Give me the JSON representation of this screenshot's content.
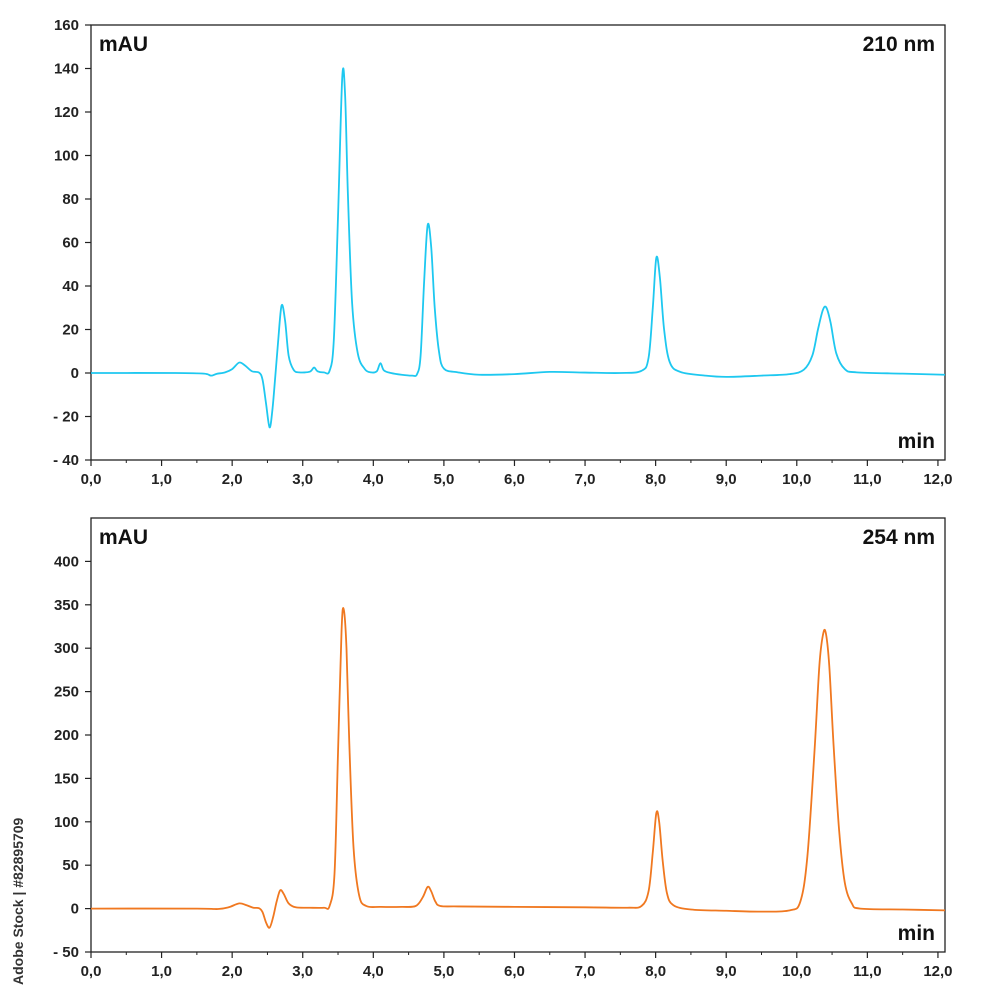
{
  "chart_data": [
    {
      "type": "line",
      "wavelength_label": "210 nm",
      "ylabel": "mAU",
      "xlabel": "min",
      "xlim": [
        0,
        12.1
      ],
      "ylim": [
        -40,
        160
      ],
      "x_ticks": [
        "0,0",
        "1,0",
        "2,0",
        "3,0",
        "4,0",
        "5,0",
        "6,0",
        "7,0",
        "8,0",
        "9,0",
        "10,0",
        "11,0",
        "12,0"
      ],
      "y_ticks": [
        "160",
        "140",
        "120",
        "100",
        "80",
        "60",
        "40",
        "20",
        "0",
        "- 20",
        "- 40"
      ],
      "y_tick_values": [
        160,
        140,
        120,
        100,
        80,
        60,
        40,
        20,
        0,
        -20,
        -40
      ],
      "color": "#1ec8f0",
      "series": [
        {
          "points": [
            [
              0.0,
              0
            ],
            [
              1.2,
              0
            ],
            [
              1.6,
              -0.3
            ],
            [
              1.7,
              -1.2
            ],
            [
              1.78,
              -0.4
            ],
            [
              1.9,
              0.3
            ],
            [
              2.0,
              1.8
            ],
            [
              2.1,
              4.8
            ],
            [
              2.18,
              3.5
            ],
            [
              2.28,
              0.8
            ],
            [
              2.38,
              0.2
            ],
            [
              2.43,
              -3
            ],
            [
              2.48,
              -14
            ],
            [
              2.53,
              -25
            ],
            [
              2.57,
              -17
            ],
            [
              2.61,
              -2
            ],
            [
              2.65,
              14
            ],
            [
              2.7,
              31
            ],
            [
              2.75,
              24
            ],
            [
              2.8,
              8
            ],
            [
              2.87,
              1.5
            ],
            [
              2.95,
              0.3
            ],
            [
              3.1,
              0.6
            ],
            [
              3.16,
              2.5
            ],
            [
              3.21,
              0.8
            ],
            [
              3.3,
              0.3
            ],
            [
              3.38,
              1
            ],
            [
              3.44,
              15
            ],
            [
              3.5,
              72
            ],
            [
              3.56,
              136
            ],
            [
              3.6,
              128
            ],
            [
              3.64,
              82
            ],
            [
              3.7,
              32
            ],
            [
              3.78,
              9
            ],
            [
              3.88,
              1.8
            ],
            [
              3.97,
              0.3
            ],
            [
              4.05,
              0.8
            ],
            [
              4.1,
              4.5
            ],
            [
              4.15,
              1.2
            ],
            [
              4.25,
              0
            ],
            [
              4.4,
              -0.8
            ],
            [
              4.55,
              -1.2
            ],
            [
              4.62,
              -0.5
            ],
            [
              4.67,
              8
            ],
            [
              4.72,
              42
            ],
            [
              4.77,
              68
            ],
            [
              4.82,
              58
            ],
            [
              4.87,
              30
            ],
            [
              4.93,
              10
            ],
            [
              5.0,
              2
            ],
            [
              5.2,
              0.3
            ],
            [
              5.5,
              -0.8
            ],
            [
              6.0,
              -0.5
            ],
            [
              6.5,
              0.5
            ],
            [
              7.0,
              0.2
            ],
            [
              7.5,
              0
            ],
            [
              7.8,
              1
            ],
            [
              7.9,
              7
            ],
            [
              7.96,
              30
            ],
            [
              8.01,
              53
            ],
            [
              8.06,
              44
            ],
            [
              8.12,
              20
            ],
            [
              8.2,
              5
            ],
            [
              8.35,
              0.5
            ],
            [
              8.7,
              -1.2
            ],
            [
              9.0,
              -1.8
            ],
            [
              9.5,
              -1.2
            ],
            [
              9.9,
              -0.5
            ],
            [
              10.1,
              1.5
            ],
            [
              10.22,
              8
            ],
            [
              10.3,
              20
            ],
            [
              10.37,
              29
            ],
            [
              10.42,
              30
            ],
            [
              10.48,
              23
            ],
            [
              10.56,
              9
            ],
            [
              10.68,
              1.8
            ],
            [
              10.85,
              0.3
            ],
            [
              11.5,
              -0.3
            ],
            [
              12.1,
              -0.8
            ]
          ]
        }
      ]
    },
    {
      "type": "line",
      "wavelength_label": "254 nm",
      "ylabel": "mAU",
      "xlabel": "min",
      "xlim": [
        0,
        12.1
      ],
      "ylim": [
        -50,
        450
      ],
      "x_ticks": [
        "0,0",
        "1,0",
        "2,0",
        "3,0",
        "4,0",
        "5,0",
        "6,0",
        "7,0",
        "8,0",
        "9,0",
        "10,0",
        "11,0",
        "12,0"
      ],
      "y_ticks": [
        "400",
        "350",
        "300",
        "250",
        "200",
        "150",
        "100",
        "50",
        "0",
        "- 50"
      ],
      "y_tick_values": [
        400,
        350,
        300,
        250,
        200,
        150,
        100,
        50,
        0,
        -50
      ],
      "color": "#f07820",
      "series": [
        {
          "points": [
            [
              0.0,
              0
            ],
            [
              1.5,
              0
            ],
            [
              1.8,
              -0.5
            ],
            [
              1.95,
              1.5
            ],
            [
              2.1,
              6
            ],
            [
              2.2,
              4
            ],
            [
              2.3,
              1
            ],
            [
              2.38,
              0.5
            ],
            [
              2.43,
              -4
            ],
            [
              2.48,
              -16
            ],
            [
              2.53,
              -22
            ],
            [
              2.58,
              -10
            ],
            [
              2.63,
              8
            ],
            [
              2.68,
              21
            ],
            [
              2.73,
              17
            ],
            [
              2.8,
              6
            ],
            [
              2.9,
              1.5
            ],
            [
              3.1,
              1
            ],
            [
              3.3,
              1
            ],
            [
              3.38,
              3
            ],
            [
              3.45,
              40
            ],
            [
              3.5,
              180
            ],
            [
              3.55,
              320
            ],
            [
              3.58,
              345
            ],
            [
              3.62,
              300
            ],
            [
              3.66,
              190
            ],
            [
              3.72,
              70
            ],
            [
              3.8,
              15
            ],
            [
              3.9,
              3
            ],
            [
              4.1,
              2
            ],
            [
              4.4,
              2
            ],
            [
              4.6,
              3
            ],
            [
              4.7,
              13
            ],
            [
              4.77,
              25
            ],
            [
              4.82,
              20
            ],
            [
              4.88,
              8
            ],
            [
              4.95,
              3
            ],
            [
              5.2,
              2.5
            ],
            [
              6.0,
              2
            ],
            [
              7.0,
              1.5
            ],
            [
              7.6,
              1
            ],
            [
              7.8,
              3
            ],
            [
              7.9,
              20
            ],
            [
              7.96,
              65
            ],
            [
              8.01,
              110
            ],
            [
              8.05,
              100
            ],
            [
              8.1,
              55
            ],
            [
              8.16,
              18
            ],
            [
              8.25,
              4
            ],
            [
              8.5,
              -1
            ],
            [
              9.0,
              -2.5
            ],
            [
              9.5,
              -3.5
            ],
            [
              9.9,
              -2
            ],
            [
              10.05,
              8
            ],
            [
              10.15,
              60
            ],
            [
              10.25,
              180
            ],
            [
              10.32,
              280
            ],
            [
              10.37,
              315
            ],
            [
              10.41,
              318
            ],
            [
              10.46,
              280
            ],
            [
              10.52,
              190
            ],
            [
              10.6,
              90
            ],
            [
              10.68,
              30
            ],
            [
              10.78,
              6
            ],
            [
              10.9,
              0
            ],
            [
              11.5,
              -1
            ],
            [
              12.1,
              -2
            ]
          ]
        }
      ]
    }
  ],
  "side_watermark": "Adobe Stock | #82895709"
}
